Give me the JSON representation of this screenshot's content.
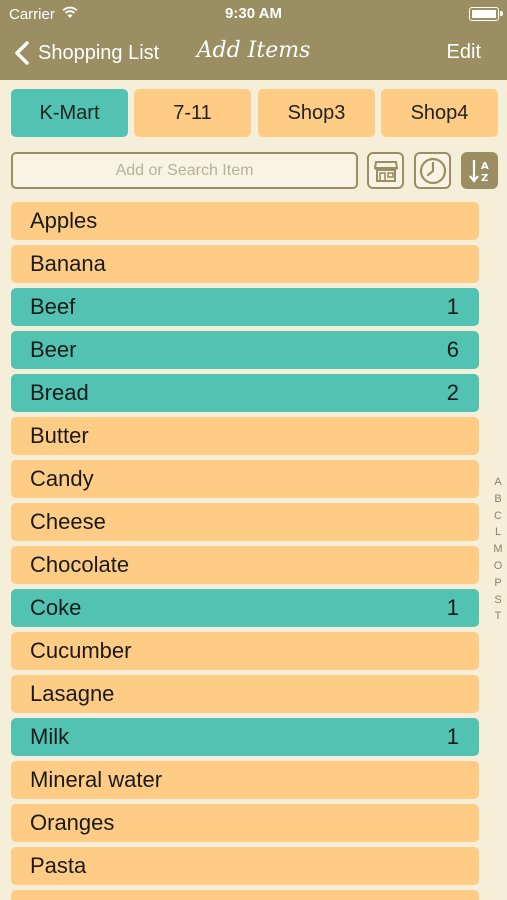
{
  "status_bar": {
    "carrier": "Carrier",
    "time": "9:30 AM"
  },
  "nav": {
    "back_label": "Shopping List",
    "title": "Add Items",
    "edit_label": "Edit"
  },
  "shops": [
    {
      "label": "K-Mart",
      "active": true
    },
    {
      "label": "7-11",
      "active": false
    },
    {
      "label": "Shop3",
      "active": false
    },
    {
      "label": "Shop4",
      "active": false
    }
  ],
  "search": {
    "placeholder": "Add or Search Item",
    "value": ""
  },
  "toolbar_icons": [
    "store-icon",
    "clock-icon",
    "sort-az-icon"
  ],
  "items": [
    {
      "name": "Apples",
      "count": ""
    },
    {
      "name": "Banana",
      "count": ""
    },
    {
      "name": "Beef",
      "count": "1"
    },
    {
      "name": "Beer",
      "count": "6"
    },
    {
      "name": "Bread",
      "count": "2"
    },
    {
      "name": "Butter",
      "count": ""
    },
    {
      "name": "Candy",
      "count": ""
    },
    {
      "name": "Cheese",
      "count": ""
    },
    {
      "name": "Chocolate",
      "count": ""
    },
    {
      "name": "Coke",
      "count": "1"
    },
    {
      "name": "Cucumber",
      "count": ""
    },
    {
      "name": "Lasagne",
      "count": ""
    },
    {
      "name": "Milk",
      "count": "1"
    },
    {
      "name": "Mineral water",
      "count": ""
    },
    {
      "name": "Oranges",
      "count": ""
    },
    {
      "name": "Pasta",
      "count": ""
    },
    {
      "name": "",
      "count": ""
    }
  ],
  "section_index": [
    "A",
    "B",
    "C",
    "L",
    "M",
    "O",
    "P",
    "S",
    "T"
  ],
  "colors": {
    "header": "#9b8e62",
    "background": "#f5efd9",
    "item_unchecked": "#ffcc86",
    "item_checked": "#52c2b2"
  }
}
